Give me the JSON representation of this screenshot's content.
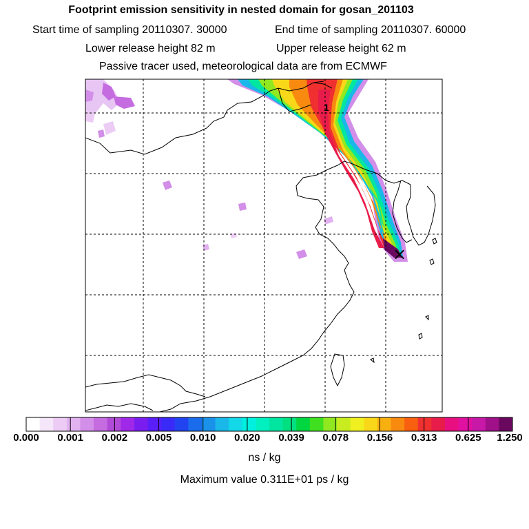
{
  "header": {
    "title": "Footprint emission sensitivity in nested domain for gosan_201103",
    "start_label": "Start time of sampling 20110307. 30000",
    "end_label": "End time of sampling 20110307. 60000",
    "lower_label": "Lower release height   82 m",
    "upper_label": "Upper release height   62 m",
    "tracer_note": "Passive tracer used, meteorological data are from ECMWF"
  },
  "map": {
    "release_label": "1",
    "receptor_marker": "×"
  },
  "colorbar": {
    "colors": [
      "#ffffff",
      "#f5e6fa",
      "#ecccf5",
      "#e2b2f0",
      "#d28ee8",
      "#c46ce0",
      "#b24ad8",
      "#a028e8",
      "#7a1ef0",
      "#5a1ef8",
      "#3a2af8",
      "#2244f0",
      "#1a6cec",
      "#1a92ea",
      "#1ab8e8",
      "#12d8e8",
      "#00f0e0",
      "#00f0c0",
      "#00e6a0",
      "#00e080",
      "#00d640",
      "#40e020",
      "#90e820",
      "#c8ec20",
      "#f0f020",
      "#f8d818",
      "#f8b010",
      "#f88a10",
      "#f86010",
      "#f03030",
      "#e81c4a",
      "#e81080",
      "#e010a0",
      "#c818a8",
      "#a01088",
      "#6a0860"
    ],
    "ticks": [
      "0.000",
      "0.001",
      "0.002",
      "0.005",
      "0.010",
      "0.020",
      "0.039",
      "0.078",
      "0.156",
      "0.313",
      "0.625",
      "1.250"
    ],
    "unit": "ns / kg"
  },
  "footer": {
    "max_value": "Maximum value  0.311E+01 ps / kg"
  }
}
